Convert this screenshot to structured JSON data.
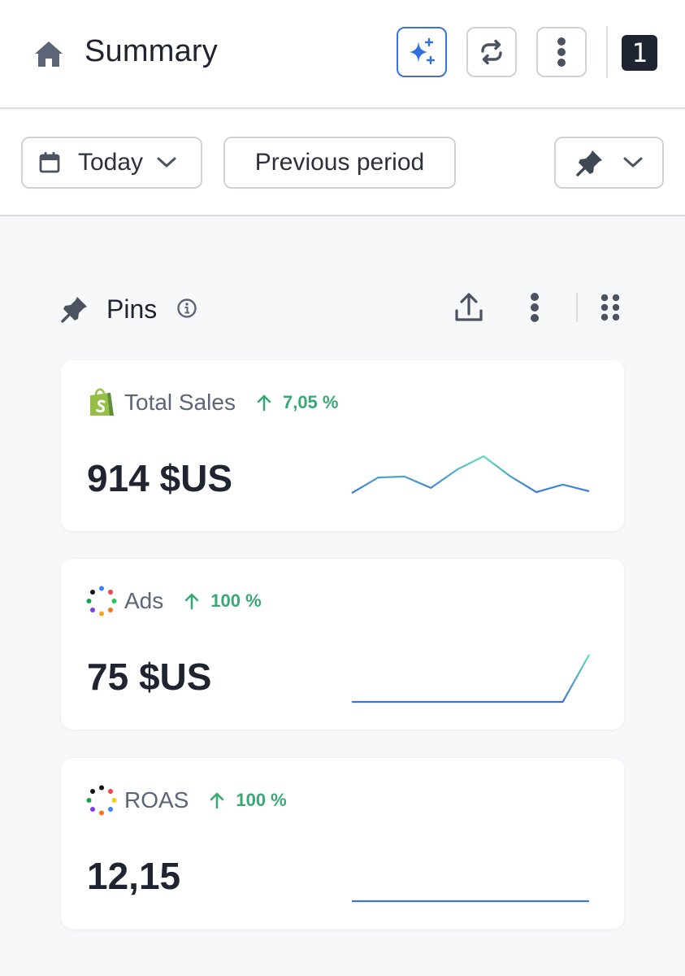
{
  "header": {
    "title": "Summary",
    "badge_count": "1",
    "icons": [
      "home-icon",
      "sparkles-icon",
      "sync-icon",
      "more-vertical-icon"
    ]
  },
  "filters": {
    "date_range_label": "Today",
    "compare_label": "Previous period"
  },
  "pins": {
    "title": "Pins",
    "icons": [
      "pin-icon",
      "info-icon",
      "upload-icon",
      "more-vertical-icon",
      "drag-grid-icon"
    ]
  },
  "cards": [
    {
      "name": "Total Sales",
      "change": "7,05 %",
      "value": "914 $US",
      "logo": "shopify-logo",
      "trend": [
        0.22,
        0.55,
        0.57,
        0.33,
        0.72,
        1.0,
        0.58,
        0.24,
        0.4,
        0.26
      ]
    },
    {
      "name": "Ads",
      "change": "100 %",
      "value": "75 $US",
      "logo": "multicolor-dots-logo",
      "trend": [
        0.0,
        0.0,
        0.0,
        0.0,
        0.0,
        0.0,
        0.0,
        0.0,
        0.0,
        1.0
      ]
    },
    {
      "name": "ROAS",
      "change": "100 %",
      "value": "12,15",
      "logo": "multicolor-dots-logo",
      "trend": [
        0.0,
        0.0,
        0.0,
        0.0,
        0.0,
        0.0,
        0.0,
        0.0,
        0.0,
        0.0
      ]
    }
  ],
  "colors": {
    "accent": "#3b74d6",
    "positive": "#3aa874",
    "text": "#1f2430",
    "muted": "#5b6577",
    "border": "#cfd3d9",
    "background": "#f7f8fa",
    "shopify_green": "#95bf47"
  }
}
